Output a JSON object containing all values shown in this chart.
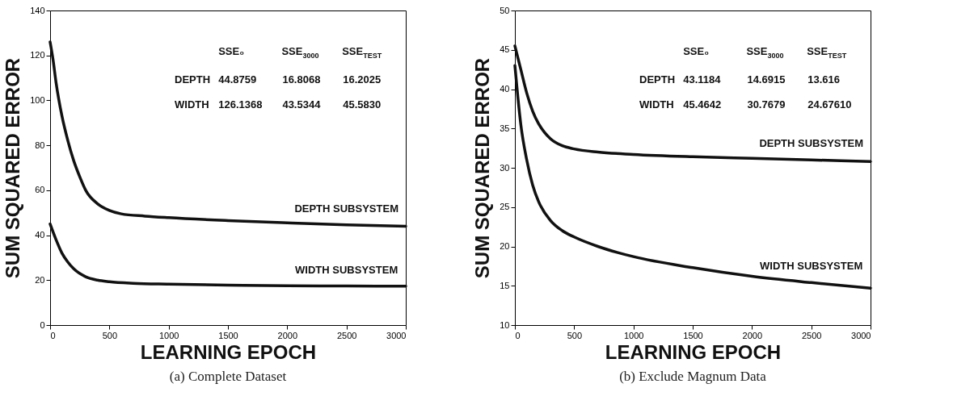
{
  "chart_data": [
    {
      "type": "line",
      "title": "(a) Complete Dataset",
      "xlabel": "LEARNING EPOCH",
      "ylabel": "SUM SQUARED ERROR",
      "xlim": [
        0,
        3000
      ],
      "xticks": [
        0,
        500,
        1000,
        1500,
        2000,
        2500,
        3000
      ],
      "ylim": [
        0,
        140
      ],
      "yticks": [
        0,
        20,
        40,
        60,
        80,
        100,
        120,
        140
      ],
      "grid": false,
      "marker": "none",
      "line_style": "solid",
      "series": [
        {
          "name": "DEPTH SUBSYSTEM",
          "color": "#111111",
          "x": [
            0,
            25,
            50,
            100,
            150,
            200,
            250,
            300,
            400,
            500,
            600,
            800,
            1000,
            1500,
            2000,
            2500,
            3000
          ],
          "values": [
            126,
            118,
            108,
            93,
            82,
            73,
            66,
            60,
            54,
            51,
            49.5,
            48.5,
            47.8,
            46.5,
            45.5,
            44.6,
            44
          ]
        },
        {
          "name": "WIDTH SUBSYSTEM",
          "color": "#111111",
          "x": [
            0,
            50,
            100,
            150,
            200,
            300,
            400,
            500,
            700,
            1000,
            1500,
            2000,
            2500,
            3000
          ],
          "values": [
            45,
            38,
            32,
            28,
            25,
            21.5,
            20,
            19.3,
            18.6,
            18.2,
            17.8,
            17.5,
            17.4,
            17.3
          ]
        }
      ],
      "annotations": [
        "SSE₀",
        "SSE$_{3000}$",
        "SSE$_{TEST}$",
        "DEPTH",
        "44.8759",
        "16.8068",
        "16.2025",
        "WIDTH",
        "126.1368",
        "43.5344",
        "45.5830"
      ]
    },
    {
      "type": "line",
      "title": "(b) Exclude Magnum Data",
      "xlabel": "LEARNING EPOCH",
      "ylabel": "SUM SQUARED ERROR",
      "xlim": [
        0,
        3000
      ],
      "xticks": [
        0,
        500,
        1000,
        1500,
        2000,
        2500,
        3000
      ],
      "ylim": [
        10,
        50
      ],
      "yticks": [
        10,
        15,
        20,
        25,
        30,
        35,
        40,
        45,
        50
      ],
      "grid": false,
      "marker": "none",
      "line_style": "solid",
      "series": [
        {
          "name": "DEPTH SUBSYSTEM",
          "color": "#111111",
          "x": [
            0,
            50,
            100,
            150,
            200,
            250,
            300,
            400,
            500,
            700,
            1000,
            1500,
            2000,
            2500,
            3000
          ],
          "values": [
            45.5,
            42.5,
            39.5,
            37.2,
            35.6,
            34.5,
            33.7,
            32.8,
            32.4,
            32,
            31.7,
            31.4,
            31.2,
            31,
            30.8
          ]
        },
        {
          "name": "WIDTH SUBSYSTEM",
          "color": "#111111",
          "x": [
            0,
            25,
            50,
            100,
            150,
            200,
            300,
            400,
            500,
            700,
            1000,
            1500,
            2000,
            2500,
            3000
          ],
          "values": [
            43,
            39,
            35.5,
            31,
            27.8,
            25.7,
            23.3,
            22,
            21.2,
            20,
            18.7,
            17.3,
            16.2,
            15.4,
            14.7
          ]
        }
      ],
      "annotations": [
        "SSE₀",
        "SSE$_{3000}$",
        "SSE$_{TEST}$",
        "DEPTH",
        "43.1184",
        "14.6915",
        "13.616",
        "WIDTH",
        "45.4642",
        "30.7679",
        "24.67610"
      ]
    }
  ]
}
